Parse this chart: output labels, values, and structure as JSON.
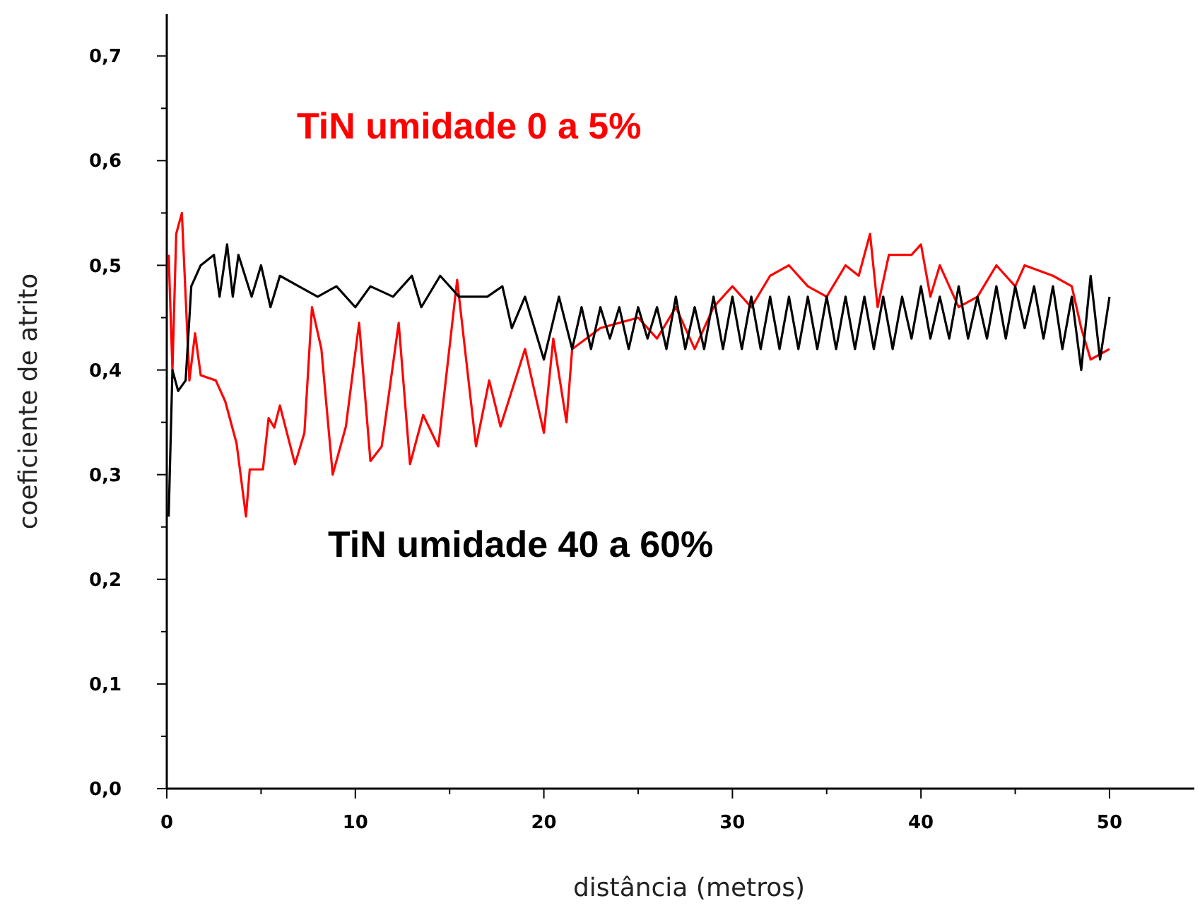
{
  "chart_data": {
    "type": "line",
    "xlabel": "distância (metros)",
    "ylabel": "coeficiente de atrito",
    "xlim": [
      0,
      54.5
    ],
    "ylim": [
      0,
      0.74
    ],
    "xticks": [
      0,
      {
        "value": 5,
        "label": null
      },
      10,
      {
        "value": 15,
        "label": null
      },
      20,
      {
        "value": 25,
        "label": null
      },
      30,
      {
        "value": 35,
        "label": null
      },
      40,
      {
        "value": 45,
        "label": null
      },
      50
    ],
    "yticks": [
      {
        "value": 0,
        "label": "0,0"
      },
      {
        "value": 0.05,
        "label": null
      },
      {
        "value": 0.1,
        "label": "0,1"
      },
      {
        "value": 0.15,
        "label": null
      },
      {
        "value": 0.2,
        "label": "0,2"
      },
      {
        "value": 0.25,
        "label": null
      },
      {
        "value": 0.3,
        "label": "0,3"
      },
      {
        "value": 0.35,
        "label": null
      },
      {
        "value": 0.4,
        "label": "0,4"
      },
      {
        "value": 0.45,
        "label": null
      },
      {
        "value": 0.5,
        "label": "0,5"
      },
      {
        "value": 0.55,
        "label": null
      },
      {
        "value": 0.6,
        "label": "0,6"
      },
      {
        "value": 0.65,
        "label": null
      },
      {
        "value": 0.7,
        "label": "0,7"
      }
    ],
    "grid": false,
    "marker": "none",
    "line_style": "solid",
    "series": [
      {
        "name": "TiN umidade 0 a 5%",
        "color": "#ff0000",
        "x": [
          0.1,
          0.3,
          0.5,
          0.8,
          1.0,
          1.2,
          1.5,
          1.8,
          2.6,
          3.1,
          3.7,
          4.2,
          4.4,
          5.1,
          5.4,
          5.7,
          6.0,
          6.8,
          7.3,
          7.7,
          8.2,
          8.8,
          9.5,
          10.2,
          10.8,
          11.4,
          12.3,
          12.9,
          13.6,
          14.4,
          15.4,
          16.4,
          17.1,
          17.7,
          19.0,
          20.0,
          20.5,
          21.2,
          21.5,
          23,
          25,
          26,
          27,
          28,
          29,
          30,
          31,
          32,
          33,
          34,
          35,
          36,
          36.7,
          37.3,
          37.7,
          38.3,
          39.5,
          40,
          40.5,
          41,
          42,
          43,
          44,
          45,
          45.5,
          47,
          48,
          48.5,
          49,
          50
        ],
        "values": [
          0.51,
          0.4,
          0.53,
          0.55,
          0.47,
          0.39,
          0.435,
          0.395,
          0.39,
          0.37,
          0.33,
          0.26,
          0.305,
          0.305,
          0.354,
          0.345,
          0.366,
          0.31,
          0.34,
          0.46,
          0.42,
          0.3,
          0.346,
          0.445,
          0.313,
          0.327,
          0.445,
          0.31,
          0.357,
          0.327,
          0.486,
          0.327,
          0.39,
          0.346,
          0.42,
          0.34,
          0.43,
          0.35,
          0.42,
          0.44,
          0.45,
          0.43,
          0.46,
          0.42,
          0.46,
          0.48,
          0.46,
          0.49,
          0.5,
          0.48,
          0.47,
          0.5,
          0.49,
          0.53,
          0.46,
          0.51,
          0.51,
          0.52,
          0.47,
          0.5,
          0.46,
          0.47,
          0.5,
          0.48,
          0.5,
          0.49,
          0.48,
          0.44,
          0.41,
          0.42
        ]
      },
      {
        "name": "TiN umidade 40 a 60%",
        "color": "#000000",
        "x": [
          0.1,
          0.3,
          0.6,
          1.0,
          1.3,
          1.8,
          2.5,
          2.8,
          3.2,
          3.5,
          3.8,
          4.5,
          5,
          5.5,
          6,
          7,
          8,
          9,
          10,
          10.8,
          12,
          13,
          13.5,
          14.5,
          15.5,
          17,
          17.8,
          18.3,
          19,
          20,
          20.8,
          21.5,
          22,
          22.5,
          23,
          23.5,
          24,
          24.5,
          25,
          25.5,
          26,
          26.5,
          27,
          27.5,
          28,
          28.5,
          29,
          29.5,
          30,
          30.5,
          31,
          31.5,
          32,
          32.5,
          33,
          33.5,
          34,
          34.5,
          35,
          35.5,
          36,
          36.5,
          37,
          37.5,
          38,
          38.5,
          39,
          39.5,
          40,
          40.5,
          41,
          41.5,
          42,
          42.5,
          43,
          43.5,
          44,
          44.5,
          45,
          45.5,
          46,
          46.5,
          47,
          47.5,
          48,
          48.5,
          49,
          49.5,
          50
        ],
        "values": [
          0.26,
          0.4,
          0.38,
          0.39,
          0.48,
          0.5,
          0.51,
          0.47,
          0.52,
          0.47,
          0.51,
          0.47,
          0.5,
          0.46,
          0.49,
          0.48,
          0.47,
          0.48,
          0.46,
          0.48,
          0.47,
          0.49,
          0.46,
          0.49,
          0.47,
          0.47,
          0.48,
          0.44,
          0.47,
          0.41,
          0.47,
          0.42,
          0.46,
          0.42,
          0.46,
          0.43,
          0.46,
          0.42,
          0.46,
          0.43,
          0.46,
          0.42,
          0.47,
          0.42,
          0.46,
          0.42,
          0.47,
          0.42,
          0.47,
          0.42,
          0.47,
          0.42,
          0.47,
          0.42,
          0.47,
          0.42,
          0.47,
          0.42,
          0.47,
          0.42,
          0.47,
          0.42,
          0.47,
          0.42,
          0.47,
          0.42,
          0.47,
          0.43,
          0.48,
          0.43,
          0.47,
          0.43,
          0.48,
          0.43,
          0.47,
          0.43,
          0.48,
          0.43,
          0.48,
          0.44,
          0.48,
          0.43,
          0.48,
          0.42,
          0.47,
          0.4,
          0.49,
          0.41,
          0.47
        ]
      }
    ]
  }
}
